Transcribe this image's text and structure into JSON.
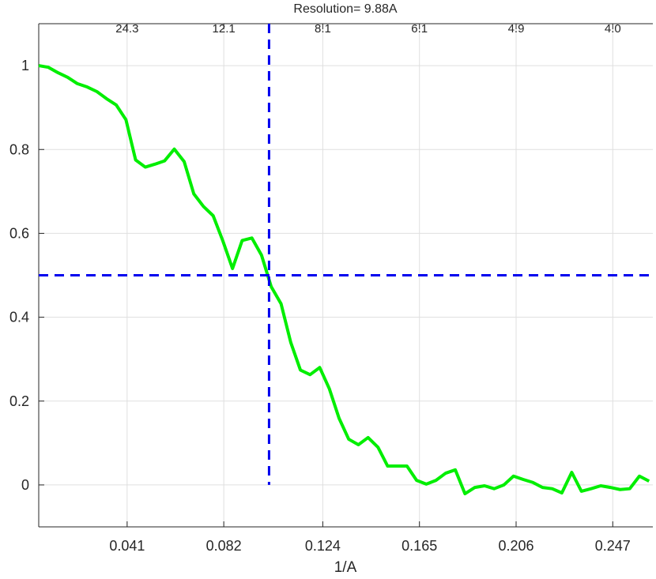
{
  "chart_data": {
    "type": "line",
    "title": "Resolution= 9.88A",
    "x_label": "1/A",
    "xlim": [
      0.0035,
      0.264
    ],
    "ylim": [
      -0.1,
      1.1
    ],
    "xticks": [
      0.041,
      0.082,
      0.124,
      0.165,
      0.206,
      0.247
    ],
    "x2ticks": [
      {
        "value": 0.041,
        "label": "24.3"
      },
      {
        "value": 0.082,
        "label": "12.1"
      },
      {
        "value": 0.124,
        "label": "8.1"
      },
      {
        "value": 0.165,
        "label": "6.1"
      },
      {
        "value": 0.206,
        "label": "4.9"
      },
      {
        "value": 0.247,
        "label": "4.0"
      }
    ],
    "yticks": [
      0,
      0.2,
      0.4,
      0.6,
      0.8,
      1
    ],
    "grid": true,
    "threshold": 0.5,
    "resolution_x": 0.1012,
    "reference_color": "#0000ee",
    "series": [
      {
        "color": "#00ee00",
        "x": [
          0.0035,
          0.0076,
          0.0117,
          0.0158,
          0.0199,
          0.0241,
          0.0282,
          0.0323,
          0.0364,
          0.0405,
          0.0446,
          0.0487,
          0.0528,
          0.0569,
          0.061,
          0.0652,
          0.0693,
          0.0734,
          0.0775,
          0.0816,
          0.0857,
          0.0898,
          0.0939,
          0.098,
          0.1021,
          0.1063,
          0.1104,
          0.1145,
          0.1186,
          0.1227,
          0.1268,
          0.1309,
          0.135,
          0.1391,
          0.1432,
          0.1474,
          0.1515,
          0.1556,
          0.1597,
          0.1638,
          0.1679,
          0.172,
          0.1761,
          0.1802,
          0.1843,
          0.1885,
          0.1926,
          0.1967,
          0.2008,
          0.2049,
          0.209,
          0.2131,
          0.2172,
          0.2213,
          0.2254,
          0.2296,
          0.2337,
          0.2378,
          0.2419,
          0.246,
          0.2501,
          0.2542,
          0.2583,
          0.2624
        ],
        "values": [
          1.0,
          0.996,
          0.983,
          0.972,
          0.957,
          0.949,
          0.938,
          0.921,
          0.906,
          0.871,
          0.775,
          0.758,
          0.765,
          0.773,
          0.801,
          0.771,
          0.694,
          0.664,
          0.642,
          0.582,
          0.516,
          0.583,
          0.589,
          0.548,
          0.473,
          0.432,
          0.34,
          0.274,
          0.263,
          0.28,
          0.229,
          0.159,
          0.109,
          0.096,
          0.113,
          0.09,
          0.045,
          0.045,
          0.045,
          0.011,
          0.002,
          0.011,
          0.028,
          0.036,
          -0.021,
          -0.006,
          -0.002,
          -0.009,
          0,
          0.021,
          0.013,
          0.006,
          -0.006,
          -0.009,
          -0.019,
          0.03,
          -0.015,
          -0.009,
          -0.002,
          -0.006,
          -0.011,
          -0.009,
          0.021,
          0.009
        ]
      }
    ]
  }
}
